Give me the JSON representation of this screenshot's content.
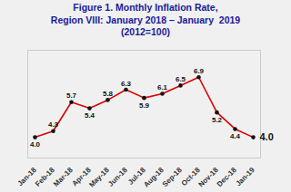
{
  "chart_data": {
    "type": "line",
    "title": "Figure 1. Monthly Inflation Rate,\nRegion VIII: January 2018 – January  2019\n(2012=100)",
    "categories": [
      "Jan-18",
      "Feb-18",
      "Mar-18",
      "Apr-18",
      "May-18",
      "Jun-18",
      "Jul-18",
      "Aug-18",
      "Sep-18",
      "Oct-18",
      "Nov-18",
      "Dec-18",
      "Jan-19"
    ],
    "values": [
      4.0,
      4.3,
      5.7,
      5.4,
      5.8,
      6.3,
      5.9,
      6.1,
      6.5,
      6.9,
      5.2,
      4.4,
      4.0
    ],
    "value_labels": [
      "4.0",
      "4.3",
      "5.7",
      "5.4",
      "5.8",
      "6.3",
      "5.9",
      "6.1",
      "6.5",
      "6.9",
      "5.2",
      "4.4",
      "4.0"
    ],
    "data_labels": true,
    "color": "#dd0000",
    "marker": "circle",
    "ylim": [
      3.0,
      8.2
    ],
    "tick_labels": "x",
    "grid": false
  }
}
